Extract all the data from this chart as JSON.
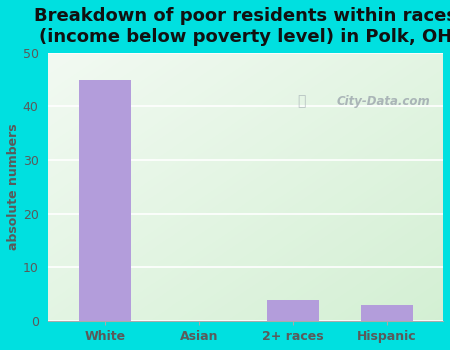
{
  "title": "Breakdown of poor residents within races\n(income below poverty level) in Polk, OH",
  "categories": [
    "White",
    "Asian",
    "2+ races",
    "Hispanic"
  ],
  "values": [
    45,
    0,
    4,
    3
  ],
  "bar_color": "#b39ddb",
  "ylabel": "absolute numbers",
  "ylim": [
    0,
    50
  ],
  "yticks": [
    0,
    10,
    20,
    30,
    40,
    50
  ],
  "background_outer": "#00e0e0",
  "grid_color": "#ffffff",
  "watermark": "City-Data.com",
  "title_fontsize": 13,
  "ylabel_fontsize": 9,
  "tick_fontsize": 9,
  "label_color": "#5a5a5a",
  "title_color": "#111111"
}
